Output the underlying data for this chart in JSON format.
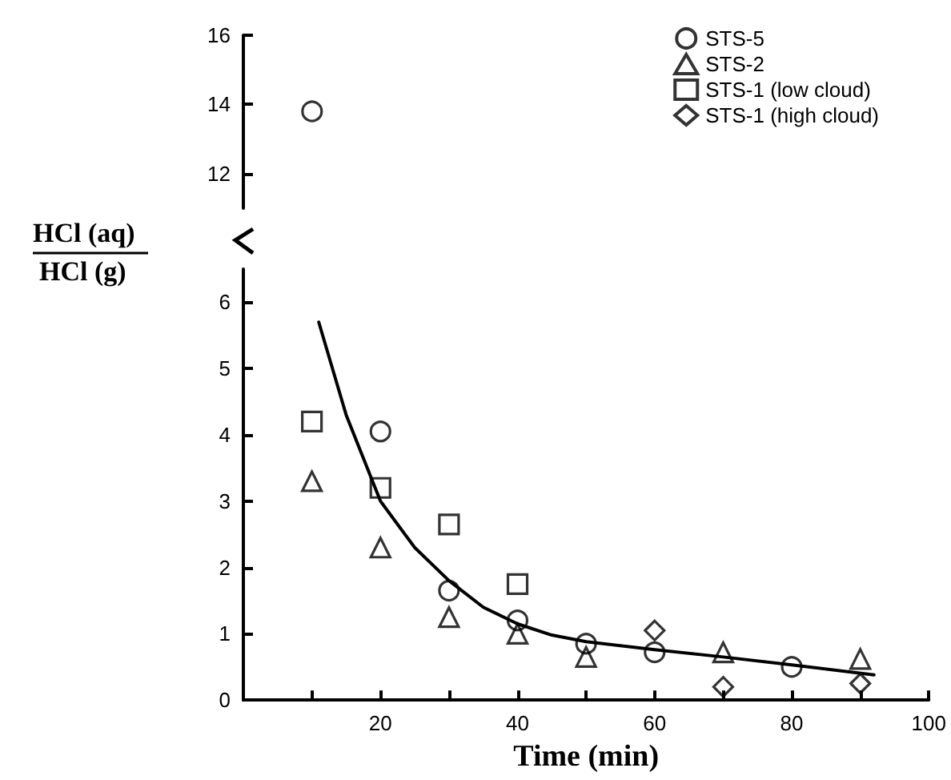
{
  "chart_data": [
    {
      "type": "scatter",
      "xlim": [
        0,
        100
      ],
      "ylim": [
        11,
        16
      ],
      "yticks": [
        12,
        14,
        16
      ],
      "tick_labels": "y",
      "legend": "top right",
      "series": [
        {
          "name": "STS-5",
          "color": "#000000",
          "marker": "circle",
          "x": [
            10
          ],
          "values": [
            13.8
          ]
        },
        {
          "name": "STS-2",
          "color": "#000000",
          "marker": "triangle"
        },
        {
          "name": "STS-1 (low cloud)",
          "color": "#000000",
          "marker": "square"
        },
        {
          "name": "STS-1 (high cloud)",
          "color": "#000000",
          "marker": "diamond"
        }
      ]
    },
    {
      "type": "scatter",
      "xlabel": "Time (min)",
      "ylabel": "HCl (aq)\nHCl (g)",
      "xlim": [
        0,
        100
      ],
      "xticks": [
        {
          "value": 10,
          "label": null
        },
        20,
        {
          "value": 30,
          "label": null
        },
        40,
        {
          "value": 50,
          "label": null
        },
        60,
        {
          "value": 70,
          "label": null
        },
        80,
        {
          "value": 90,
          "label": null
        },
        100
      ],
      "ylim": [
        0,
        6.5
      ],
      "yticks": [
        0,
        1,
        2,
        3,
        4,
        5,
        6
      ],
      "series": [
        {
          "color": "#000000",
          "marker": "circle",
          "x": [
            20,
            30,
            40,
            50,
            60,
            80
          ],
          "values": [
            4.05,
            1.65,
            1.2,
            0.85,
            0.72,
            0.5
          ]
        },
        {
          "color": "#000000",
          "marker": "triangle",
          "x": [
            10,
            20,
            30,
            40,
            50,
            70,
            90
          ],
          "values": [
            3.3,
            2.3,
            1.25,
            1.0,
            0.65,
            0.72,
            0.62
          ]
        },
        {
          "color": "#000000",
          "marker": "square",
          "x": [
            10,
            20,
            30,
            40
          ],
          "values": [
            4.2,
            3.2,
            2.65,
            1.75
          ]
        },
        {
          "color": "#000000",
          "marker": "diamond",
          "x": [
            60,
            70,
            90
          ],
          "values": [
            1.05,
            0.2,
            0.25
          ]
        },
        {
          "type": "line",
          "color": "#000000",
          "marker": "none",
          "line_style": "solid",
          "x": [
            11,
            15,
            20,
            25,
            30,
            35,
            40,
            45,
            50,
            60,
            70,
            80,
            92
          ],
          "values": [
            5.7,
            4.3,
            3.0,
            2.3,
            1.8,
            1.4,
            1.15,
            0.98,
            0.88,
            0.76,
            0.65,
            0.53,
            0.38
          ]
        }
      ]
    }
  ]
}
